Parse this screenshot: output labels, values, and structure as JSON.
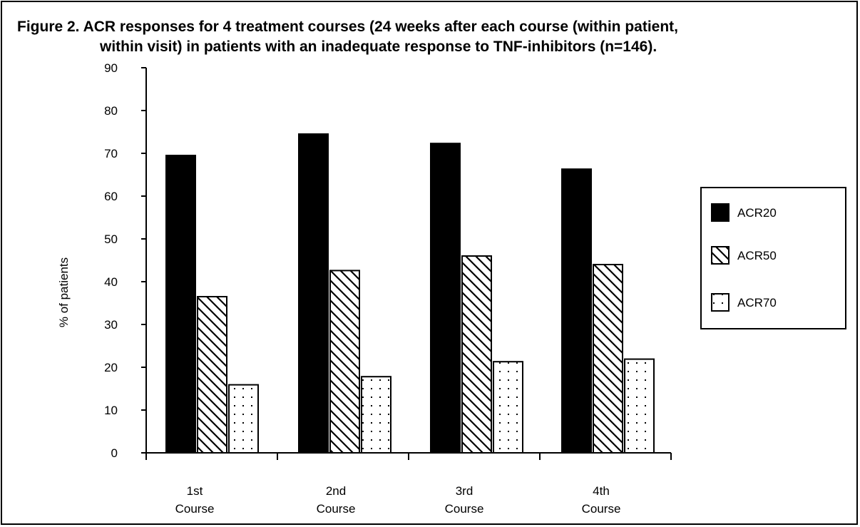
{
  "title_line1": "Figure 2. ACR responses for 4 treatment courses (24 weeks after each course (within patient,",
  "title_line2": "within visit) in patients with an inadequate response to TNF-inhibitors (n=146).",
  "chart_data": {
    "type": "bar",
    "categories": [
      [
        "1st",
        "Course"
      ],
      [
        "2nd",
        "Course"
      ],
      [
        "3rd",
        "Course"
      ],
      [
        "4th",
        "Course"
      ]
    ],
    "series": [
      {
        "name": "ACR20",
        "values": [
          69.5,
          74.5,
          72.3,
          66.3
        ],
        "fill": "solid-black"
      },
      {
        "name": "ACR50",
        "values": [
          36.5,
          42.6,
          46.0,
          44.0
        ],
        "fill": "diagonal-hatch"
      },
      {
        "name": "ACR70",
        "values": [
          15.9,
          17.8,
          21.3,
          21.9
        ],
        "fill": "dotted"
      }
    ],
    "ylabel": "% of patients",
    "xlabel": "",
    "ylim": [
      0,
      90
    ],
    "yticks": [
      0,
      10,
      20,
      30,
      40,
      50,
      60,
      70,
      80,
      90
    ],
    "grid": false,
    "legend_position": "right",
    "colors": {
      "bar_edge": "#000000",
      "background": "#ffffff"
    }
  }
}
